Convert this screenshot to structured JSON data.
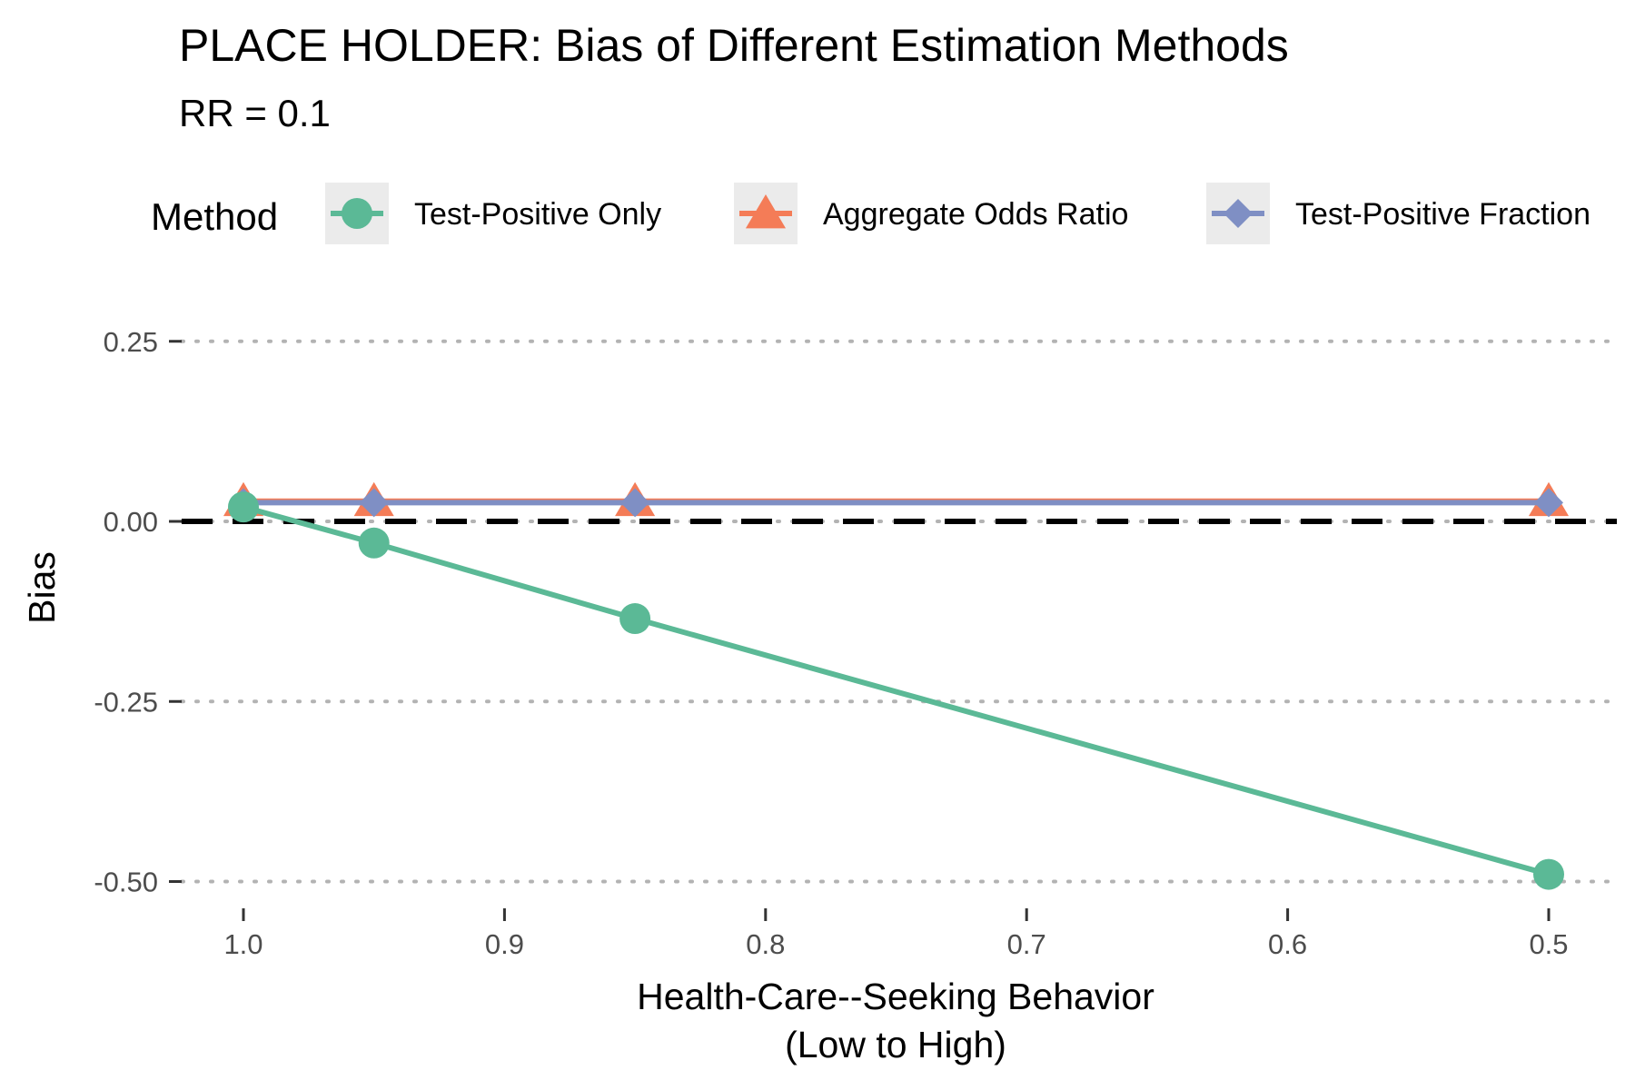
{
  "chart_data": {
    "type": "line",
    "title": "PLACE HOLDER: Bias of Different Estimation Methods",
    "subtitle": "RR = 0.1",
    "xlabel_line1": "Health-Care--Seeking Behavior",
    "xlabel_line2": "(Low to High)",
    "ylabel": "Bias",
    "x_reversed": true,
    "xlim": [
      1.025,
      0.475
    ],
    "ylim": [
      -0.5,
      0.25
    ],
    "x_ticks": [
      1.0,
      0.9,
      0.8,
      0.7,
      0.6,
      0.5
    ],
    "x_tick_labels": [
      "1.0",
      "0.9",
      "0.8",
      "0.7",
      "0.6",
      "0.5"
    ],
    "y_ticks": [
      0.25,
      0.0,
      -0.25,
      -0.5
    ],
    "y_tick_labels": [
      "0.25",
      "0.00",
      "-0.25",
      "-0.50"
    ],
    "grid": "dotted horizontal",
    "reference_line": 0,
    "legend": {
      "title": "Method",
      "position": "top"
    },
    "x": [
      1.0,
      0.95,
      0.85,
      0.5
    ],
    "series": [
      {
        "name": "Test-Positive Only",
        "marker": "circle",
        "color": "#5BB996",
        "values": [
          0.02,
          -0.03,
          -0.135,
          -0.49
        ]
      },
      {
        "name": "Aggregate Odds Ratio",
        "marker": "triangle",
        "color": "#F47C57",
        "values": [
          0.028,
          0.028,
          0.028,
          0.028
        ]
      },
      {
        "name": "Test-Positive Fraction",
        "marker": "diamond",
        "color": "#7F8FC4",
        "values": [
          0.026,
          0.026,
          0.026,
          0.026
        ]
      }
    ]
  }
}
